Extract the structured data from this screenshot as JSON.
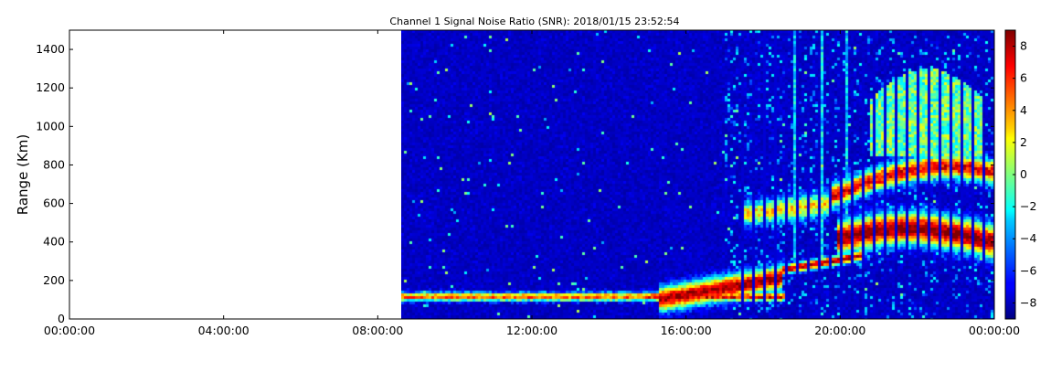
{
  "chart_data": {
    "type": "heatmap",
    "title": "Channel 1 Signal Noise Ratio (SNR): 2018/01/15 23:52:54",
    "xlabel": "",
    "ylabel": "Range (Km)",
    "xlim": [
      "00:00:00",
      "24:00:00"
    ],
    "xlim_hours": [
      0,
      24
    ],
    "ylim": [
      0,
      1500
    ],
    "x_tick_labels": [
      "00:00:00",
      "04:00:00",
      "08:00:00",
      "12:00:00",
      "16:00:00",
      "20:00:00",
      "00:00:00"
    ],
    "x_tick_hours": [
      0,
      4,
      8,
      12,
      16,
      20,
      24
    ],
    "y_ticks": [
      0,
      200,
      400,
      600,
      800,
      1000,
      1200,
      1400
    ],
    "data_start_hour": 8.6,
    "no_data_before": "08:36:00",
    "colorbar": {
      "colormap": "jet",
      "range": [
        -9,
        9
      ],
      "ticks": [
        -8,
        -6,
        -4,
        -2,
        0,
        2,
        4,
        6,
        8
      ]
    },
    "features": [
      {
        "name": "low echo band",
        "from_hour": 8.6,
        "to_hour": 18.5,
        "range_km": [
          90,
          140
        ],
        "snr_peak": 9
      },
      {
        "name": "rising echo trace",
        "from_hour": 15.5,
        "to_hour": 20.5,
        "range_km": [
          140,
          330
        ],
        "snr_peak": 9
      },
      {
        "name": "main echo layer",
        "from_hour": 20.0,
        "to_hour": 24.0,
        "range_km": [
          300,
          520
        ],
        "snr_peak": 9
      },
      {
        "name": "second hop layer",
        "from_hour": 17.5,
        "to_hour": 24.0,
        "range_km": [
          520,
          850
        ],
        "snr_peak": 7
      },
      {
        "name": "upper diffuse echo",
        "from_hour": 21.0,
        "to_hour": 23.5,
        "range_km": [
          1000,
          1350
        ],
        "snr_peak": 2
      }
    ]
  }
}
